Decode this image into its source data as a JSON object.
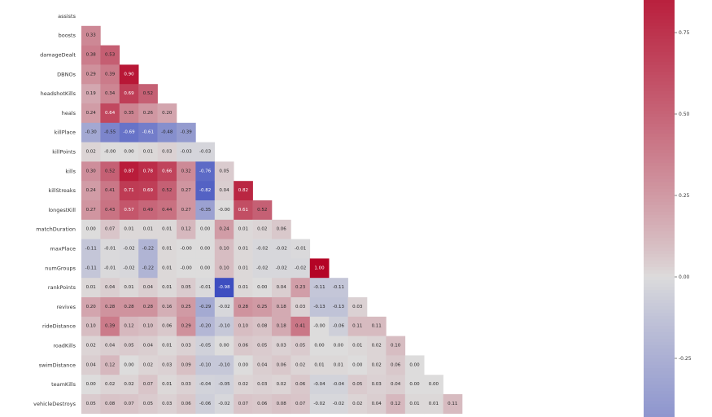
{
  "chart_data": {
    "type": "heatmap",
    "variables": [
      "assists",
      "boosts",
      "damageDealt",
      "DBNOs",
      "headshotKills",
      "heals",
      "killPlace",
      "killPoints",
      "kills",
      "killStreaks",
      "longestKill",
      "matchDuration",
      "maxPlace",
      "numGroups",
      "rankPoints",
      "revives",
      "rideDistance",
      "roadKills",
      "swimDistance",
      "teamKills",
      "vehicleDestroys"
    ],
    "lower_triangle": [
      [],
      [
        "0.33"
      ],
      [
        "0.38",
        "0.53"
      ],
      [
        "0.29",
        "0.39",
        "0.90"
      ],
      [
        "0.19",
        "0.34",
        "0.69",
        "0.52"
      ],
      [
        "0.24",
        "0.64",
        "0.35",
        "0.26",
        "0.20"
      ],
      [
        "-0.30",
        "-0.55",
        "-0.69",
        "-0.61",
        "-0.48",
        "-0.39"
      ],
      [
        "0.02",
        "-0.00",
        "0.00",
        "0.01",
        "0.03",
        "-0.03",
        "-0.03"
      ],
      [
        "0.30",
        "0.52",
        "0.87",
        "0.78",
        "0.66",
        "0.32",
        "-0.76",
        "0.05"
      ],
      [
        "0.24",
        "0.41",
        "0.71",
        "0.69",
        "0.52",
        "0.27",
        "-0.82",
        "0.04",
        "0.82"
      ],
      [
        "0.27",
        "0.43",
        "0.57",
        "0.49",
        "0.44",
        "0.27",
        "-0.35",
        "-0.00",
        "0.61",
        "0.52"
      ],
      [
        "0.00",
        "0.07",
        "0.01",
        "0.01",
        "0.01",
        "0.12",
        "0.00",
        "0.24",
        "0.01",
        "0.02",
        "0.06"
      ],
      [
        "-0.11",
        "-0.01",
        "-0.02",
        "-0.22",
        "0.01",
        "-0.00",
        "0.00",
        "0.10",
        "0.01",
        "-0.02",
        "-0.02",
        "-0.01"
      ],
      [
        "-0.11",
        "-0.01",
        "-0.02",
        "-0.22",
        "0.01",
        "-0.00",
        "0.00",
        "0.10",
        "0.01",
        "-0.02",
        "-0.02",
        "-0.02",
        "1.00"
      ],
      [
        "0.01",
        "0.04",
        "0.01",
        "0.04",
        "0.01",
        "0.05",
        "-0.01",
        "-0.98",
        "0.01",
        "0.00",
        "0.04",
        "0.23",
        "-0.11",
        "-0.11"
      ],
      [
        "0.20",
        "0.28",
        "0.28",
        "0.28",
        "0.16",
        "0.25",
        "-0.29",
        "-0.02",
        "0.28",
        "0.25",
        "0.18",
        "0.03",
        "-0.13",
        "-0.13",
        "0.03"
      ],
      [
        "0.10",
        "0.39",
        "0.12",
        "0.10",
        "0.06",
        "0.29",
        "-0.20",
        "-0.10",
        "0.10",
        "0.08",
        "0.18",
        "0.41",
        "-0.00",
        "-0.06",
        "0.11",
        "0.11"
      ],
      [
        "0.02",
        "0.04",
        "0.05",
        "0.04",
        "0.01",
        "0.03",
        "-0.05",
        "0.00",
        "0.06",
        "0.05",
        "0.03",
        "0.05",
        "0.00",
        "0.00",
        "0.01",
        "0.02",
        "0.10"
      ],
      [
        "0.04",
        "0.12",
        "0.00",
        "0.02",
        "0.03",
        "0.09",
        "-0.10",
        "-0.10",
        "0.00",
        "0.04",
        "0.06",
        "0.02",
        "0.01",
        "0.01",
        "0.00",
        "0.02",
        "0.06",
        "0.00"
      ],
      [
        "0.00",
        "0.02",
        "0.02",
        "0.07",
        "0.01",
        "0.03",
        "-0.04",
        "-0.05",
        "0.02",
        "0.03",
        "0.02",
        "0.06",
        "-0.04",
        "-0.04",
        "0.05",
        "0.03",
        "0.04",
        "0.00",
        "0.00"
      ],
      [
        "0.05",
        "0.08",
        "0.07",
        "0.05",
        "0.03",
        "0.06",
        "-0.06",
        "-0.02",
        "0.07",
        "0.06",
        "0.08",
        "0.07",
        "-0.02",
        "-0.02",
        "0.02",
        "0.04",
        "0.12",
        "0.01",
        "0.01",
        "0.11"
      ]
    ],
    "colorbar": {
      "ticks": [
        "0.75",
        "0.50",
        "0.25",
        "0.00",
        "-0.25"
      ],
      "tick_values": [
        0.75,
        0.5,
        0.25,
        0.0,
        -0.25
      ],
      "range": [
        -0.43,
        0.85
      ]
    },
    "colormap": [
      "#3b4cc0",
      "#dddcdc",
      "#b40426"
    ]
  }
}
